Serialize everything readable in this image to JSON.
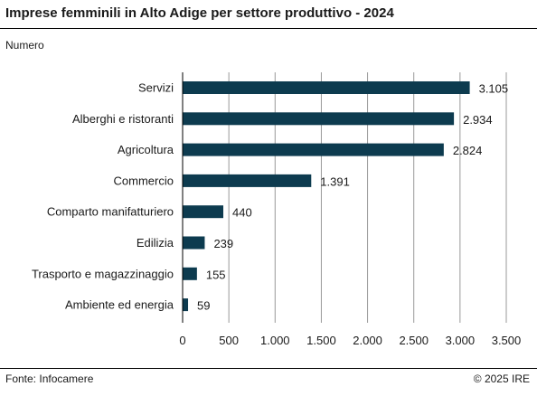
{
  "title": "Imprese femminili in Alto Adige per settore produttivo - 2024",
  "subtitle": "Numero",
  "footer": {
    "source": "Fonte: Infocamere",
    "copyright": "© 2025 IRE"
  },
  "chart_data": {
    "type": "bar",
    "orientation": "horizontal",
    "categories": [
      "Servizi",
      "Alberghi e ristoranti",
      "Agricoltura",
      "Commercio",
      "Comparto manifatturiero",
      "Edilizia",
      "Trasporto e magazzinaggio",
      "Ambiente ed energia"
    ],
    "values": [
      3105,
      2934,
      2824,
      1391,
      440,
      239,
      155,
      59
    ],
    "value_labels": [
      "3.105",
      "2.934",
      "2.824",
      "1.391",
      "440",
      "239",
      "155",
      "59"
    ],
    "xlim": [
      0,
      3500
    ],
    "x_ticks": [
      0,
      500,
      1000,
      1500,
      2000,
      2500,
      3000,
      3500
    ],
    "x_tick_labels": [
      "0",
      "500",
      "1.000",
      "1.500",
      "2.000",
      "2.500",
      "3.000",
      "3.500"
    ],
    "grid": "vertical",
    "bar_color": "#0d3b4f",
    "grid_color": "#999999",
    "axis_color": "#000000"
  }
}
